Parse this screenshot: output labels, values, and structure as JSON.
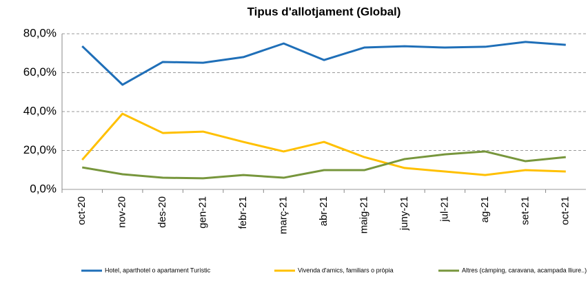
{
  "chart_data": {
    "type": "line",
    "title": "Tipus d'allotjament (Global)",
    "categories": [
      "oct-20",
      "nov-20",
      "des-20",
      "gen-21",
      "febr-21",
      "març-21",
      "abr-21",
      "maig-21",
      "juny-21",
      "jul-21",
      "ag-21",
      "set-21",
      "oct-21"
    ],
    "series": [
      {
        "name": "Hotel, aparthotel o apartament Turístic",
        "color": "#1F6FB8",
        "values": [
          73.6,
          53.8,
          65.5,
          65.1,
          68,
          75,
          66.5,
          72.9,
          73.6,
          72.9,
          73.3,
          75.8,
          74.3
        ]
      },
      {
        "name": "Vivenda d'amics, familiars o pròpia",
        "color": "#FFC000",
        "values": [
          15.2,
          38.9,
          29,
          29.7,
          24.4,
          19.5,
          24.4,
          16.6,
          11,
          9.2,
          7.4,
          9.9,
          9.2
        ]
      },
      {
        "name": "Altres (càmping, caravana, acampada lliure..)",
        "color": "#77963C",
        "values": [
          11.3,
          7.8,
          6,
          5.7,
          7.4,
          6,
          9.9,
          9.9,
          15.6,
          18,
          19.5,
          14.5,
          16.6
        ]
      }
    ],
    "ylim": [
      0,
      80
    ],
    "yticks": [
      {
        "value": 0,
        "label": "0,0%"
      },
      {
        "value": 20,
        "label": "20,0%"
      },
      {
        "value": 40,
        "label": "40,0%"
      },
      {
        "value": 60,
        "label": "60,0%"
      },
      {
        "value": 80,
        "label": "80,0%"
      }
    ],
    "grid": true,
    "legend": "bottom"
  }
}
